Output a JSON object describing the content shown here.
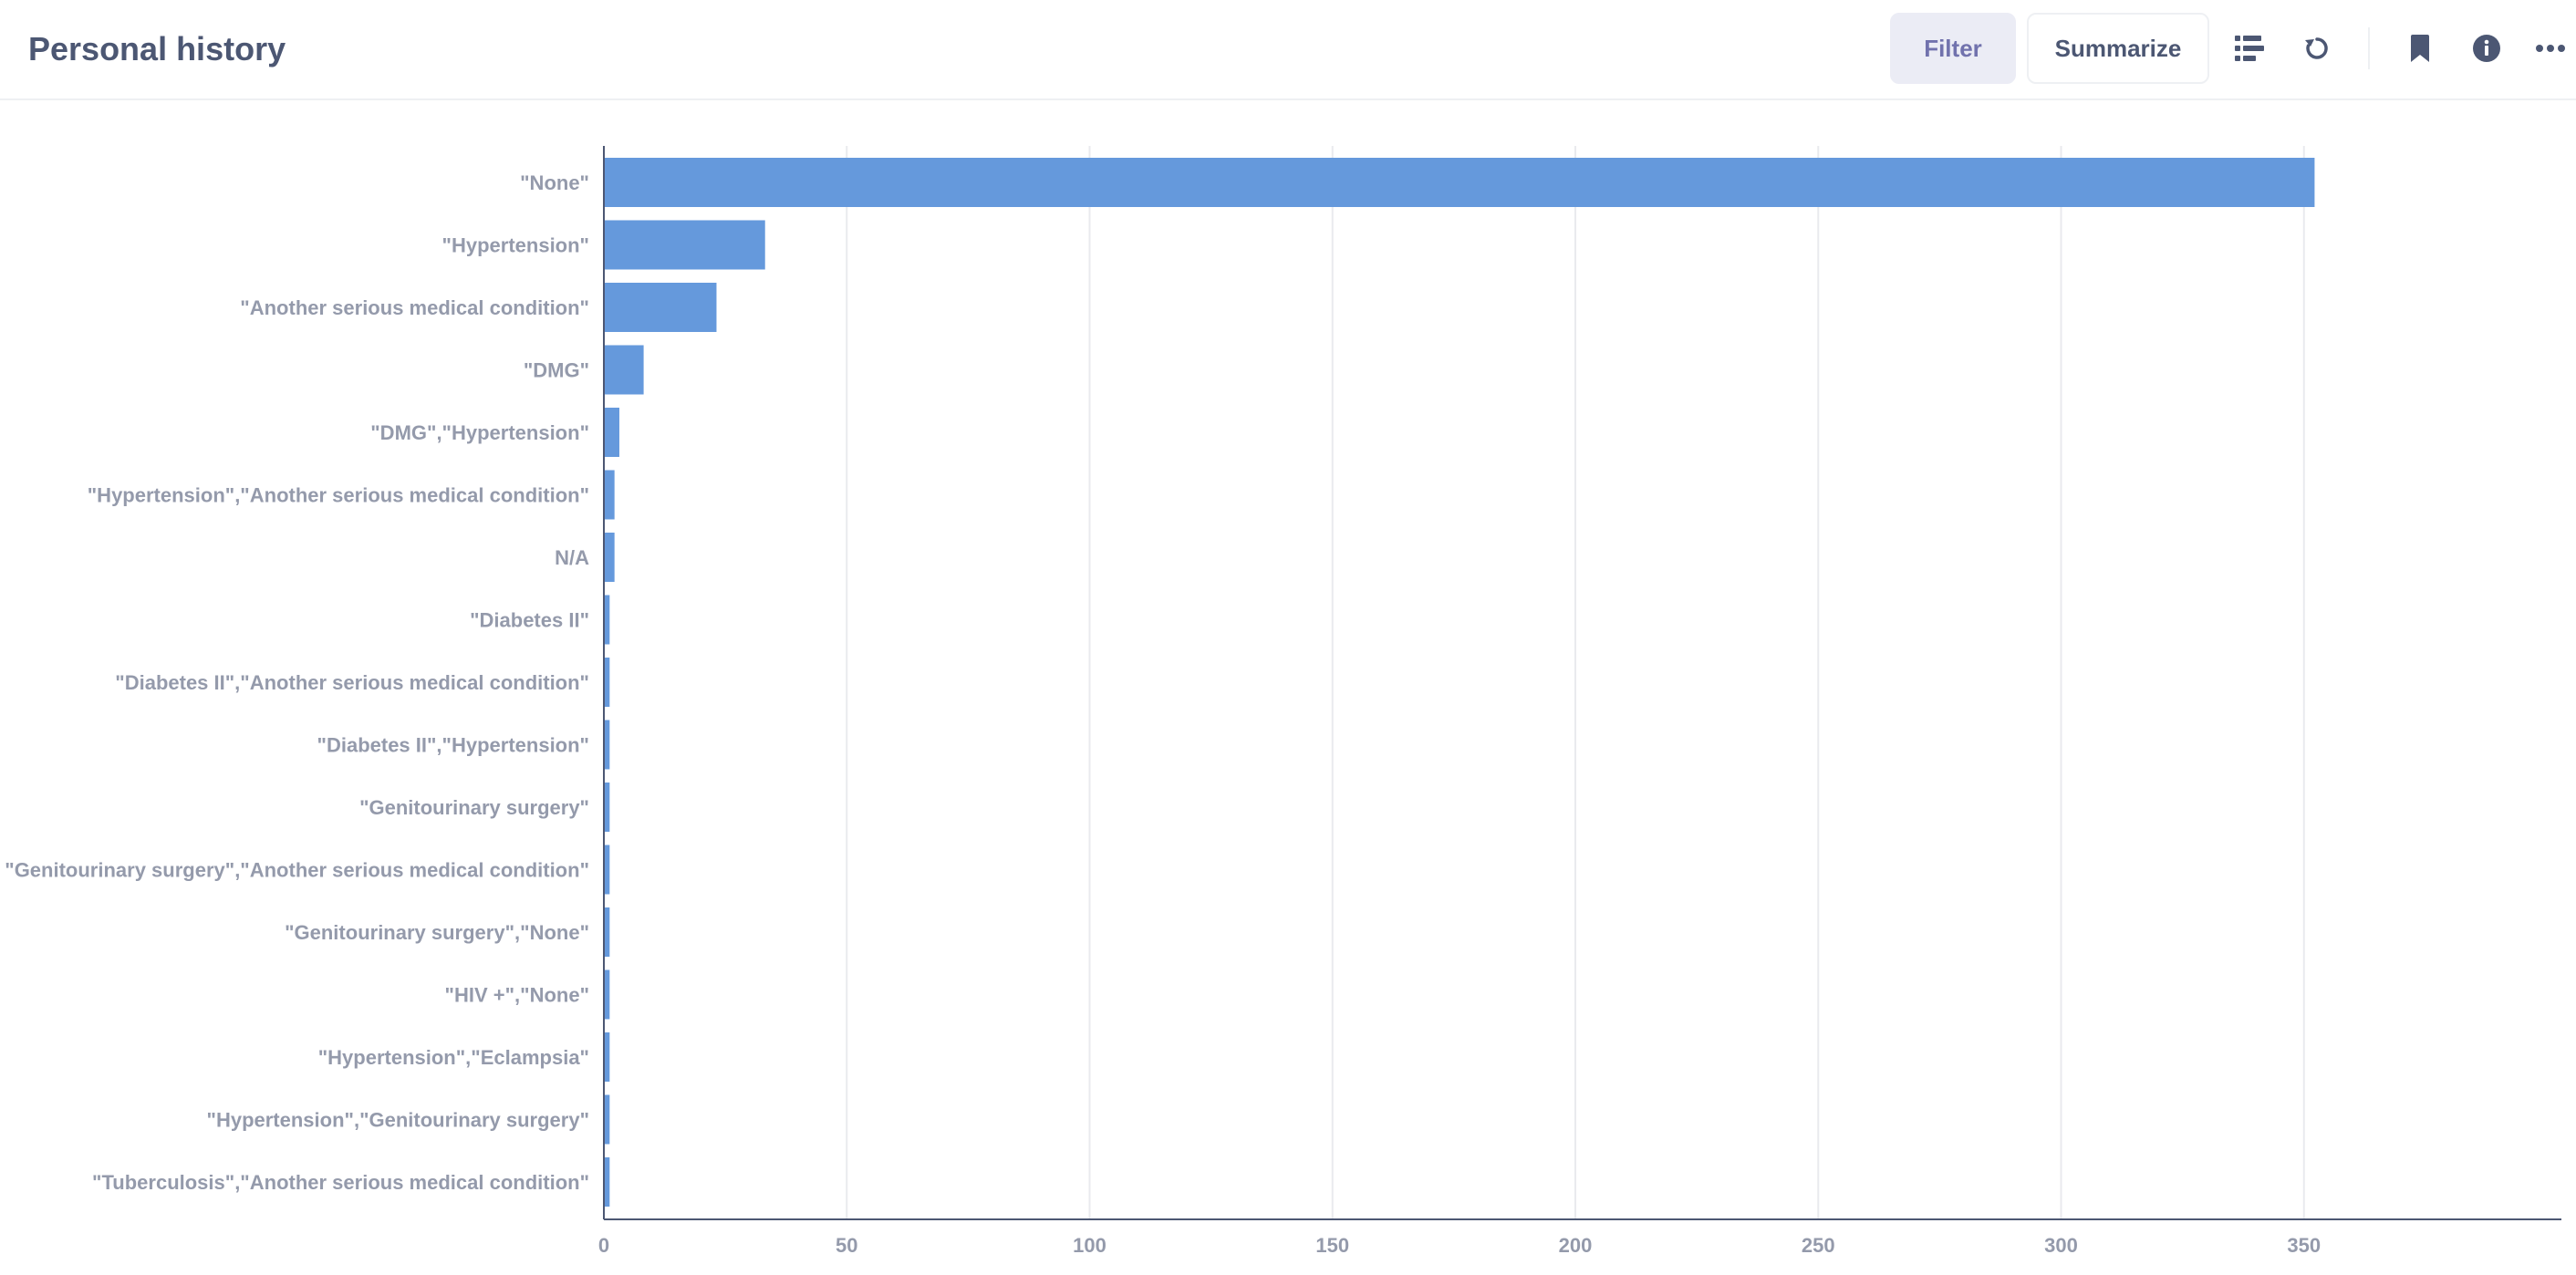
{
  "header": {
    "title": "Personal history",
    "filter_label": "Filter",
    "summarize_label": "Summarize",
    "icons": [
      "table-toggle-icon",
      "refresh-icon",
      "bookmark-icon",
      "info-icon",
      "more-icon"
    ]
  },
  "colors": {
    "bar": "#6599dc",
    "axis_text": "#949aab",
    "grid": "#e9eaee",
    "filter_bg": "#ebecf5",
    "filter_text": "#7172ad"
  },
  "chart_data": {
    "type": "bar",
    "orientation": "horizontal",
    "categories": [
      "\"None\"",
      "\"Hypertension\"",
      "\"Another serious medical condition\"",
      "\"DMG\"",
      "\"DMG\",\"Hypertension\"",
      "\"Hypertension\",\"Another serious medical condition\"",
      "N/A",
      "\"Diabetes II\"",
      "\"Diabetes II\",\"Another serious medical condition\"",
      "\"Diabetes II\",\"Hypertension\"",
      "\"Genitourinary surgery\"",
      "\"Genitourinary surgery\",\"Another serious medical condition\"",
      "\"Genitourinary surgery\",\"None\"",
      "\"HIV +\",\"None\"",
      "\"Hypertension\",\"Eclampsia\"",
      "\"Hypertension\",\"Genitourinary surgery\"",
      "\"Tuberculosis\",\"Another serious medical condition\""
    ],
    "values": [
      352,
      33,
      23,
      8,
      3,
      2,
      2,
      1,
      1,
      1,
      1,
      1,
      1,
      1,
      1,
      1,
      1
    ],
    "xticks": [
      "0",
      "50",
      "100",
      "150",
      "200",
      "250",
      "300",
      "350"
    ],
    "xlim": [
      0,
      403
    ],
    "grid": true,
    "legend": "none"
  }
}
